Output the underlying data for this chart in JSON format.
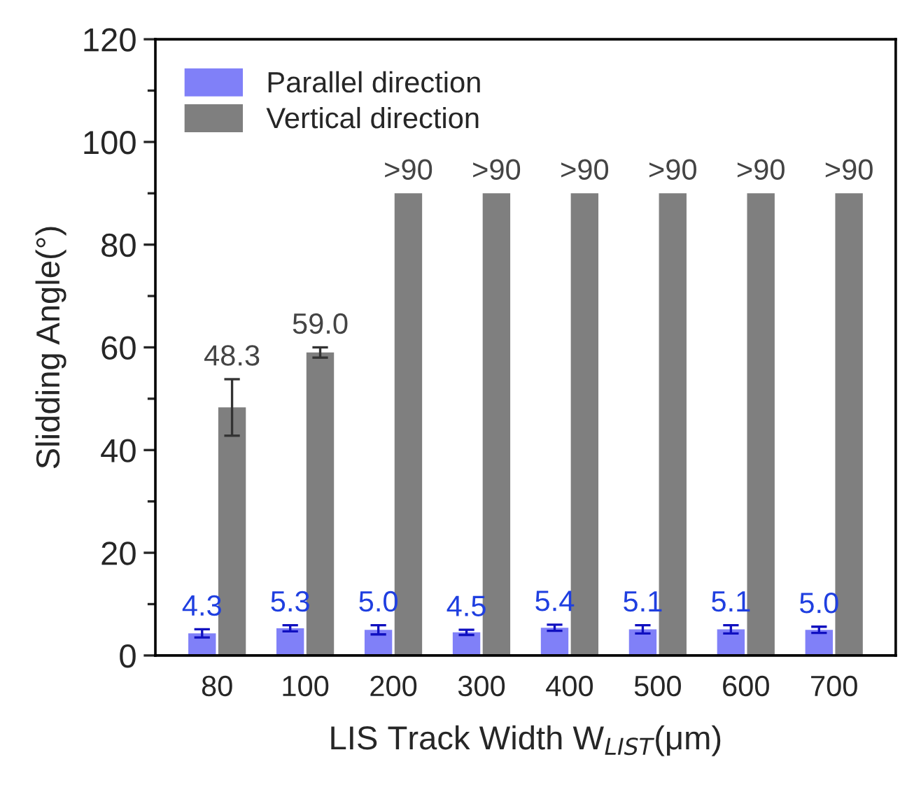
{
  "chart_data": {
    "type": "bar",
    "xlabel": "LIS Track Width W$_{LIST}$(μm)",
    "ylabel": "Slidding Angle(°)",
    "categories": [
      "80",
      "100",
      "200",
      "300",
      "400",
      "500",
      "600",
      "700"
    ],
    "series": [
      {
        "name": "Parallel direction",
        "color": "#8080f8",
        "values": [
          4.3,
          5.3,
          5.0,
          4.5,
          5.4,
          5.1,
          5.1,
          5.0
        ],
        "errors": [
          0.8,
          0.6,
          0.9,
          0.5,
          0.6,
          0.8,
          0.8,
          0.6
        ],
        "value_labels": [
          "4.3",
          "5.3",
          "5.0",
          "4.5",
          "5.4",
          "5.1",
          "5.1",
          "5.0"
        ]
      },
      {
        "name": "Vertical direction",
        "color": "#7f7f7f",
        "values": [
          48.3,
          59.0,
          90,
          90,
          90,
          90,
          90,
          90
        ],
        "errors": [
          5.5,
          1.0,
          null,
          null,
          null,
          null,
          null,
          null
        ],
        "value_labels": [
          "48.3",
          "59.0",
          ">90",
          ">90",
          ">90",
          ">90",
          ">90",
          ">90"
        ]
      }
    ],
    "ylim": [
      0,
      120
    ],
    "yticks": [
      0,
      20,
      40,
      60,
      80,
      100,
      120
    ],
    "grid": false,
    "legend": "top left"
  }
}
